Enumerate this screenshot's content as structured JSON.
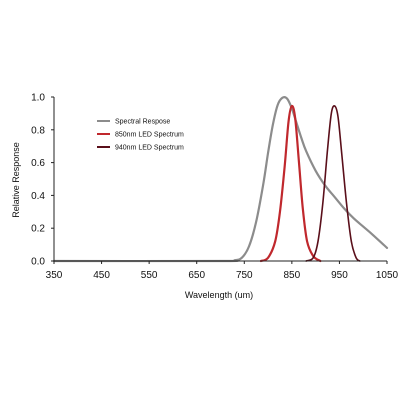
{
  "chart_data": {
    "type": "line",
    "title": "",
    "xlabel": "Wavelength (um)",
    "ylabel": "Relative Response",
    "xlim": [
      350,
      1050
    ],
    "ylim": [
      0,
      1.0
    ],
    "x_ticks": [
      "350",
      "450",
      "550",
      "650",
      "750",
      "850",
      "950",
      "1050"
    ],
    "y_ticks": [
      "0.0",
      "0.2",
      "0.4",
      "0.6",
      "0.8",
      "1.0"
    ],
    "grid": false,
    "legend_position": "top-left",
    "series": [
      {
        "name": "Spectral Respose",
        "color": "#8c8c8c",
        "points": [
          [
            350,
            0
          ],
          [
            700,
            0
          ],
          [
            730,
            0.005
          ],
          [
            745,
            0.02
          ],
          [
            760,
            0.09
          ],
          [
            775,
            0.24
          ],
          [
            790,
            0.47
          ],
          [
            800,
            0.66
          ],
          [
            810,
            0.83
          ],
          [
            820,
            0.95
          ],
          [
            830,
            0.995
          ],
          [
            840,
            0.99
          ],
          [
            850,
            0.93
          ],
          [
            860,
            0.84
          ],
          [
            870,
            0.75
          ],
          [
            880,
            0.67
          ],
          [
            900,
            0.55
          ],
          [
            920,
            0.46
          ],
          [
            940,
            0.39
          ],
          [
            960,
            0.32
          ],
          [
            980,
            0.26
          ],
          [
            1000,
            0.21
          ],
          [
            1020,
            0.16
          ],
          [
            1050,
            0.08
          ]
        ]
      },
      {
        "name": "850nm LED Spectrum",
        "color": "#c0282d",
        "points": [
          [
            785,
            0
          ],
          [
            800,
            0.02
          ],
          [
            815,
            0.12
          ],
          [
            825,
            0.3
          ],
          [
            835,
            0.58
          ],
          [
            843,
            0.85
          ],
          [
            850,
            0.945
          ],
          [
            857,
            0.87
          ],
          [
            865,
            0.6
          ],
          [
            873,
            0.32
          ],
          [
            882,
            0.12
          ],
          [
            895,
            0.03
          ],
          [
            910,
            0
          ]
        ]
      },
      {
        "name": "940nm LED Spectrum",
        "color": "#5a0f1a",
        "points": [
          [
            880,
            0
          ],
          [
            895,
            0.02
          ],
          [
            905,
            0.12
          ],
          [
            915,
            0.35
          ],
          [
            925,
            0.68
          ],
          [
            933,
            0.9
          ],
          [
            940,
            0.945
          ],
          [
            947,
            0.88
          ],
          [
            955,
            0.65
          ],
          [
            965,
            0.35
          ],
          [
            975,
            0.12
          ],
          [
            985,
            0.02
          ],
          [
            993,
            0
          ]
        ]
      }
    ]
  }
}
